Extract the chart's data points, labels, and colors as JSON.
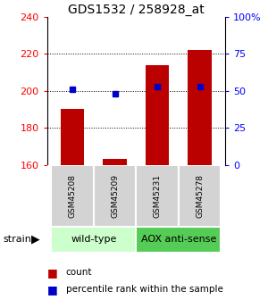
{
  "title": "GDS1532 / 258928_at",
  "samples": [
    "GSM45208",
    "GSM45209",
    "GSM45231",
    "GSM45278"
  ],
  "counts": [
    190,
    163,
    214,
    222
  ],
  "percentiles": [
    51,
    48,
    53,
    53
  ],
  "ylim_left": [
    160,
    240
  ],
  "ylim_right": [
    0,
    100
  ],
  "yticks_left": [
    160,
    180,
    200,
    220,
    240
  ],
  "yticks_right": [
    0,
    25,
    50,
    75,
    100
  ],
  "ytick_labels_right": [
    "0",
    "25",
    "50",
    "75",
    "100%"
  ],
  "bar_color": "#bb0000",
  "dot_color": "#0000cc",
  "bar_width": 0.55,
  "groups": [
    {
      "label": "wild-type",
      "indices": [
        0,
        1
      ],
      "color": "#ccffcc"
    },
    {
      "label": "AOX anti-sense",
      "indices": [
        2,
        3
      ],
      "color": "#55cc55"
    }
  ],
  "strain_label": "strain",
  "legend_items": [
    {
      "color": "#bb0000",
      "label": "count"
    },
    {
      "color": "#0000cc",
      "label": "percentile rank within the sample"
    }
  ],
  "hgrid_values": [
    180,
    200,
    220
  ],
  "plot_bg": "#ffffff"
}
